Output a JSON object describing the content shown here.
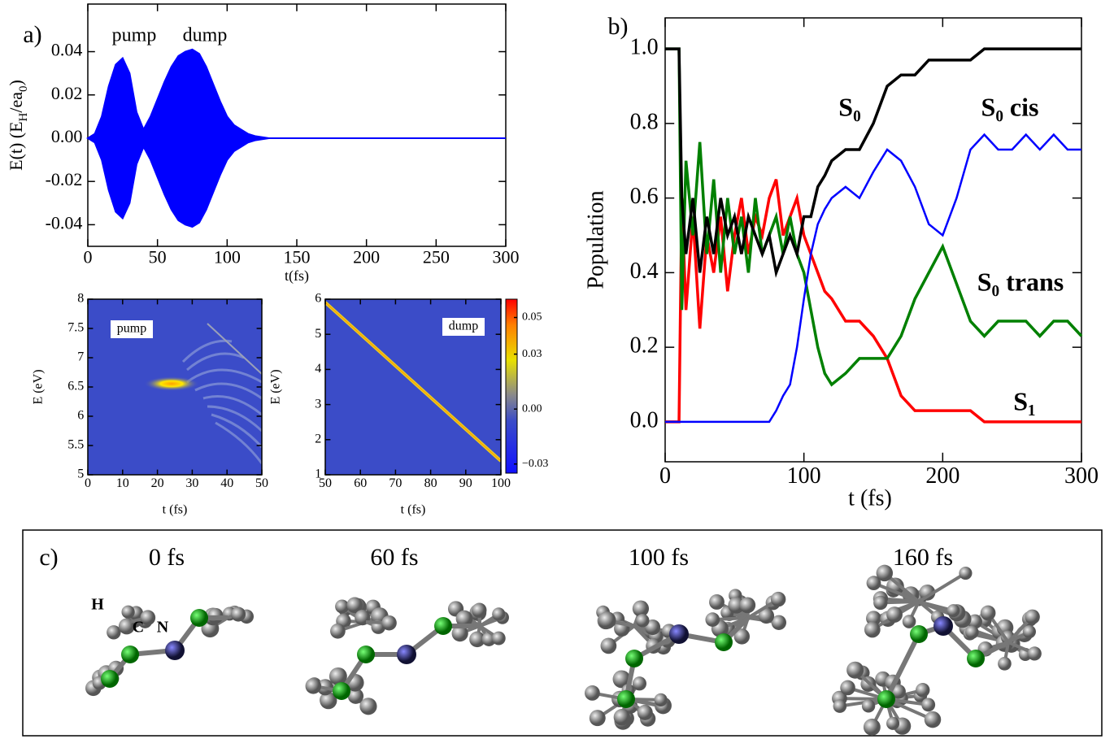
{
  "panels": [
    "a)",
    "b)",
    "c)"
  ],
  "snapshots": {
    "times": [
      "0 fs",
      "60 fs",
      "100 fs",
      "160 fs"
    ],
    "atoms": [
      "H",
      "C",
      "N"
    ]
  },
  "chart_data": [
    {
      "type": "band",
      "y_label": [
        "E(t) (E",
        "H",
        "/ea",
        "0",
        ")"
      ],
      "x_label": "t(fs)",
      "annotations": [
        "pump",
        "dump"
      ],
      "color": "#0000ff",
      "x": [
        0,
        5,
        10,
        15,
        20,
        25,
        30,
        35,
        40,
        45,
        50,
        55,
        60,
        65,
        70,
        75,
        80,
        85,
        90,
        95,
        100,
        105,
        110,
        115,
        120,
        130,
        140,
        150,
        300
      ],
      "upper": [
        0,
        0.002,
        0.01,
        0.024,
        0.034,
        0.037,
        0.03,
        0.012,
        0.004,
        0.01,
        0.018,
        0.026,
        0.033,
        0.038,
        0.04,
        0.041,
        0.039,
        0.033,
        0.025,
        0.017,
        0.01,
        0.006,
        0.004,
        0.002,
        0.001,
        0,
        0,
        0,
        0
      ],
      "lower": [
        0,
        -0.002,
        -0.01,
        -0.024,
        -0.034,
        -0.037,
        -0.03,
        -0.012,
        -0.004,
        -0.01,
        -0.018,
        -0.026,
        -0.033,
        -0.038,
        -0.04,
        -0.041,
        -0.039,
        -0.033,
        -0.025,
        -0.017,
        -0.01,
        -0.006,
        -0.004,
        -0.002,
        -0.001,
        0,
        0,
        0,
        0
      ],
      "xlim": [
        0,
        300
      ],
      "xticks": [
        0,
        50,
        100,
        150,
        200,
        250,
        300
      ],
      "ylim": [
        -0.05,
        0.062
      ],
      "yticks": [
        -0.04,
        -0.02,
        {
          "value": 0,
          "label": "0.00"
        },
        0.02,
        0.04
      ]
    },
    {
      "type": "line",
      "y_label": "Population",
      "x_label": "t (fs)",
      "x": [
        0,
        10,
        12,
        15,
        20,
        25,
        30,
        35,
        40,
        45,
        50,
        55,
        60,
        65,
        70,
        75,
        80,
        85,
        90,
        95,
        100,
        105,
        110,
        115,
        120,
        130,
        140,
        150,
        160,
        170,
        180,
        190,
        200,
        210,
        220,
        230,
        240,
        250,
        260,
        270,
        280,
        290,
        300
      ],
      "series": [
        {
          "name": "S₀",
          "color": "#000000",
          "values": [
            1,
            1,
            0.6,
            0.45,
            0.6,
            0.4,
            0.55,
            0.45,
            0.6,
            0.5,
            0.55,
            0.45,
            0.55,
            0.5,
            0.45,
            0.5,
            0.4,
            0.45,
            0.5,
            0.45,
            0.55,
            0.55,
            0.63,
            0.66,
            0.7,
            0.73,
            0.73,
            0.8,
            0.9,
            0.93,
            0.93,
            0.97,
            0.97,
            0.97,
            0.97,
            1,
            1,
            1,
            1,
            1,
            1,
            1,
            1
          ]
        },
        {
          "name": "S₀ cis",
          "color": "#0000ff",
          "values": [
            0,
            0,
            0,
            0,
            0,
            0,
            0,
            0,
            0,
            0,
            0,
            0,
            0,
            0,
            0,
            0,
            0.03,
            0.07,
            0.1,
            0.2,
            0.33,
            0.45,
            0.53,
            0.57,
            0.6,
            0.63,
            0.6,
            0.67,
            0.73,
            0.7,
            0.63,
            0.53,
            0.5,
            0.6,
            0.73,
            0.77,
            0.73,
            0.73,
            0.77,
            0.73,
            0.77,
            0.73,
            0.73
          ]
        },
        {
          "name": "S₀ trans",
          "color": "#008000",
          "values": [
            1,
            1,
            0.3,
            0.7,
            0.5,
            0.75,
            0.45,
            0.65,
            0.4,
            0.6,
            0.45,
            0.55,
            0.4,
            0.6,
            0.45,
            0.5,
            0.55,
            0.45,
            0.55,
            0.45,
            0.4,
            0.3,
            0.2,
            0.13,
            0.1,
            0.13,
            0.17,
            0.17,
            0.17,
            0.23,
            0.33,
            0.4,
            0.47,
            0.37,
            0.27,
            0.23,
            0.27,
            0.27,
            0.27,
            0.23,
            0.27,
            0.27,
            0.23
          ]
        },
        {
          "name": "S₁",
          "color": "#ff0000",
          "values": [
            0,
            0,
            0.6,
            0.3,
            0.55,
            0.25,
            0.5,
            0.4,
            0.55,
            0.35,
            0.5,
            0.6,
            0.45,
            0.55,
            0.5,
            0.6,
            0.65,
            0.5,
            0.55,
            0.6,
            0.5,
            0.45,
            0.4,
            0.35,
            0.33,
            0.27,
            0.27,
            0.23,
            0.17,
            0.07,
            0.03,
            0.03,
            0.03,
            0.03,
            0.03,
            0,
            0,
            0,
            0,
            0,
            0,
            0,
            0
          ]
        }
      ],
      "xlim": [
        0,
        300
      ],
      "xticks": [
        0,
        100,
        200,
        300
      ],
      "ylim": [
        -0.107,
        1.083
      ],
      "yticks": [
        {
          "value": 0,
          "label": "0.0"
        },
        0.2,
        0.4,
        0.6,
        0.8,
        {
          "value": 1,
          "label": "1.0"
        }
      ]
    },
    {
      "type": "heatmap",
      "y_label": "E (eV)",
      "x_label": "t (fs)",
      "annotation": "pump",
      "xlim": [
        0,
        50
      ],
      "xticks": [
        0,
        10,
        20,
        30,
        40,
        50
      ],
      "ylim": [
        5,
        8
      ],
      "yticks": [
        5,
        5.5,
        6,
        6.5,
        7,
        7.5,
        8
      ]
    },
    {
      "type": "heatmap",
      "y_label": "E (eV)",
      "x_label": "t (fs)",
      "annotation": "dump",
      "xlim": [
        50,
        100
      ],
      "xticks": [
        50,
        60,
        70,
        80,
        90,
        100
      ],
      "ylim": [
        1,
        6
      ],
      "yticks": [
        1,
        2,
        3,
        4,
        5,
        6
      ],
      "clim": [
        -0.035,
        0.06
      ],
      "cticks": [
        0.05,
        0.03,
        {
          "value": 0,
          "label": "0.00"
        },
        {
          "value": -0.03,
          "label": "−0.03"
        }
      ]
    }
  ]
}
